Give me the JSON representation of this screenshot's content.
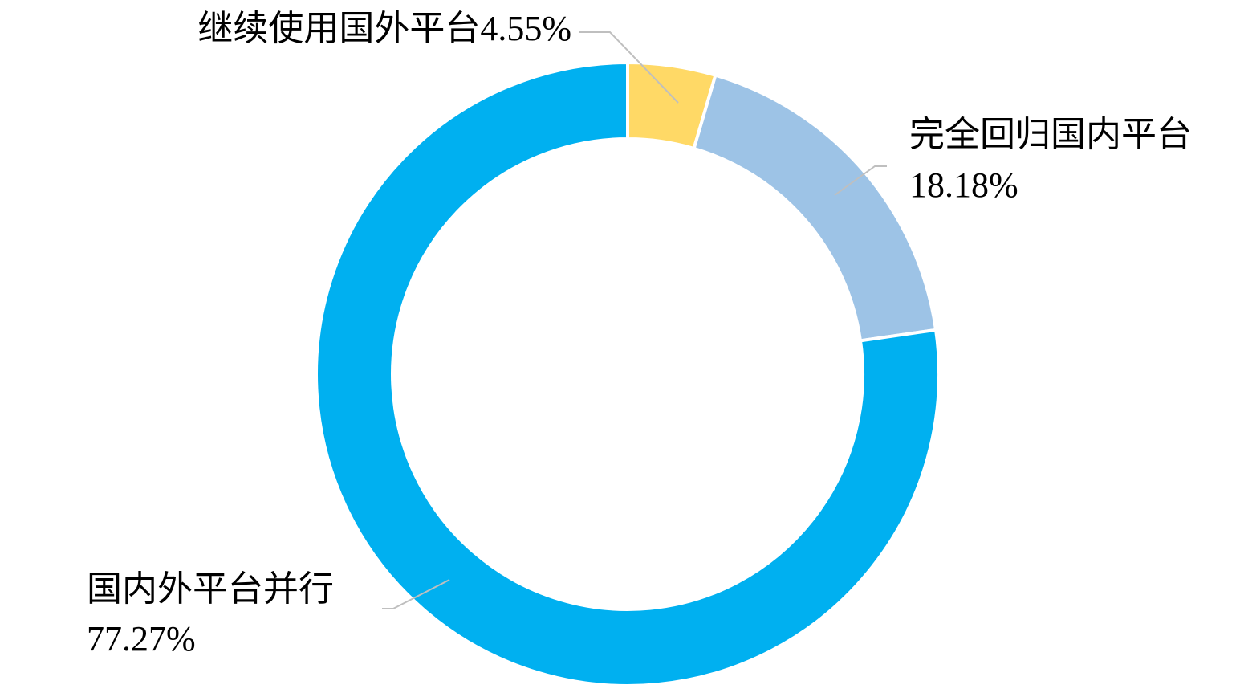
{
  "chart_data": {
    "type": "donut",
    "categories": [
      "继续使用国外平台",
      "完全回归国内平台",
      "国内外平台并行"
    ],
    "values": [
      4.55,
      18.18,
      77.27
    ],
    "value_labels": [
      "4.55%",
      "18.18%",
      "77.27%"
    ],
    "colors": [
      "#ffd966",
      "#9dc3e6",
      "#00b0f0"
    ]
  }
}
